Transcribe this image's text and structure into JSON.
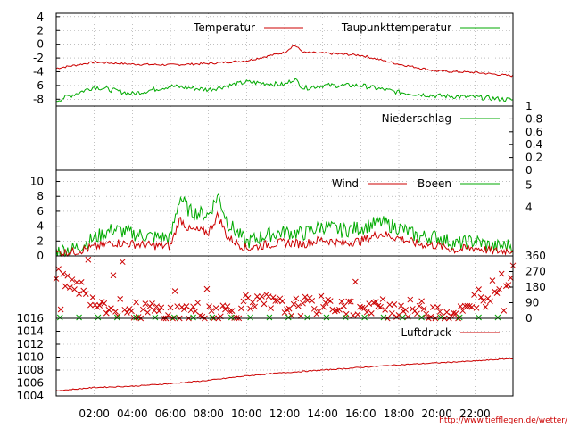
{
  "credit": "http://www.tiefflegen.de/wetter/",
  "x_axis": {
    "ticks": [
      "02:00",
      "04:00",
      "06:00",
      "08:00",
      "10:00",
      "12:00",
      "14:00",
      "16:00",
      "18:00",
      "20:00",
      "22:00"
    ]
  },
  "colors": {
    "red": "#cc0000",
    "green": "#00aa00",
    "grid": "#999999"
  },
  "chart_data": [
    {
      "type": "line",
      "x": [
        "00:00",
        "02:00",
        "04:00",
        "06:00",
        "08:00",
        "10:00",
        "12:00",
        "12:30",
        "13:00",
        "14:00",
        "16:00",
        "18:00",
        "20:00",
        "22:00",
        "24:00"
      ],
      "series": [
        {
          "name": "Temperatur",
          "values": [
            -3.5,
            -2.6,
            -2.9,
            -3.0,
            -2.8,
            -2.4,
            -1.2,
            -0.1,
            -1.2,
            -1.3,
            -1.6,
            -2.9,
            -3.9,
            -4.1,
            -4.6
          ]
        },
        {
          "name": "Taupunkttemperatur",
          "values": [
            -8.2,
            -6.2,
            -7.2,
            -6.1,
            -6.6,
            -5.5,
            -5.9,
            -5.0,
            -6.4,
            -6.0,
            -6.0,
            -7.0,
            -7.5,
            -7.7,
            -8.1
          ]
        }
      ],
      "ylim": [
        -9,
        4.5
      ],
      "yticks": [
        "4",
        "2",
        "0",
        "-2",
        "-4",
        "-6",
        "-8"
      ]
    },
    {
      "type": "line",
      "series": [
        {
          "name": "Niederschlag",
          "values": [
            0,
            0,
            0,
            0,
            0,
            0,
            0,
            0,
            0,
            0,
            0,
            0,
            0,
            0,
            0
          ]
        }
      ],
      "ylim": [
        0,
        1
      ],
      "yticks": [
        "1",
        "0.8",
        "0.6",
        "0.4",
        "0.2",
        "0"
      ]
    },
    {
      "type": "line",
      "x": [
        "00:00",
        "01:00",
        "02:00",
        "03:00",
        "04:00",
        "05:00",
        "06:00",
        "06:30",
        "07:00",
        "08:00",
        "08:30",
        "09:00",
        "10:00",
        "11:00",
        "12:00",
        "13:00",
        "14:00",
        "15:00",
        "16:00",
        "17:00",
        "18:00",
        "19:00",
        "20:00",
        "21:00",
        "22:00",
        "23:00",
        "24:00"
      ],
      "series": [
        {
          "name": "Wind",
          "values": [
            0.4,
            0.6,
            1.2,
            1.8,
            1.6,
            1.4,
            1.3,
            5.0,
            3.5,
            3.2,
            5.5,
            2.5,
            1.0,
            1.5,
            1.8,
            1.6,
            2.2,
            1.7,
            2.0,
            3.0,
            2.4,
            1.6,
            1.4,
            0.8,
            1.1,
            0.6,
            0.8
          ]
        },
        {
          "name": "Boeen",
          "values": [
            0.7,
            1.0,
            2.4,
            3.6,
            3.0,
            2.6,
            2.4,
            8.0,
            6.0,
            5.5,
            8.2,
            4.5,
            1.8,
            2.8,
            3.2,
            3.0,
            4.0,
            3.4,
            3.8,
            4.5,
            3.8,
            2.6,
            2.6,
            1.6,
            2.0,
            1.2,
            1.5
          ]
        }
      ],
      "ylim": [
        0,
        11.5
      ],
      "yticks": [
        "10",
        "8",
        "6",
        "4",
        "2",
        "0"
      ],
      "y2ticks": [
        "5",
        "4"
      ]
    },
    {
      "type": "scatter",
      "x": [
        "00:00",
        "01:00",
        "02:00",
        "03:00",
        "04:00",
        "05:00",
        "06:00",
        "07:00",
        "08:00",
        "09:00",
        "10:00",
        "11:00",
        "12:00",
        "13:00",
        "14:00",
        "15:00",
        "16:00",
        "17:00",
        "18:00",
        "19:00",
        "20:00",
        "21:00",
        "22:00",
        "23:00",
        "24:00"
      ],
      "series": [
        {
          "name": "",
          "values": [
            270,
            200,
            110,
            70,
            40,
            45,
            30,
            40,
            50,
            40,
            60,
            90,
            60,
            70,
            75,
            80,
            40,
            50,
            60,
            50,
            40,
            30,
            45,
            180,
            250
          ]
        }
      ],
      "ylim": [
        0,
        360
      ],
      "y2ticks": [
        "360",
        "270",
        "180",
        "90",
        "0"
      ]
    },
    {
      "type": "line",
      "x": [
        "00:00",
        "02:00",
        "04:00",
        "06:00",
        "08:00",
        "10:00",
        "12:00",
        "14:00",
        "16:00",
        "18:00",
        "20:00",
        "22:00",
        "24:00"
      ],
      "series": [
        {
          "name": "Luftdruck",
          "values": [
            1004.8,
            1005.3,
            1005.5,
            1005.9,
            1006.4,
            1007.1,
            1007.6,
            1008.0,
            1008.4,
            1008.8,
            1009.1,
            1009.4,
            1009.8
          ]
        }
      ],
      "ylim": [
        1004,
        1016
      ],
      "yticks": [
        "1016",
        "1014",
        "1012",
        "1010",
        "1008",
        "1006",
        "1004"
      ]
    }
  ]
}
